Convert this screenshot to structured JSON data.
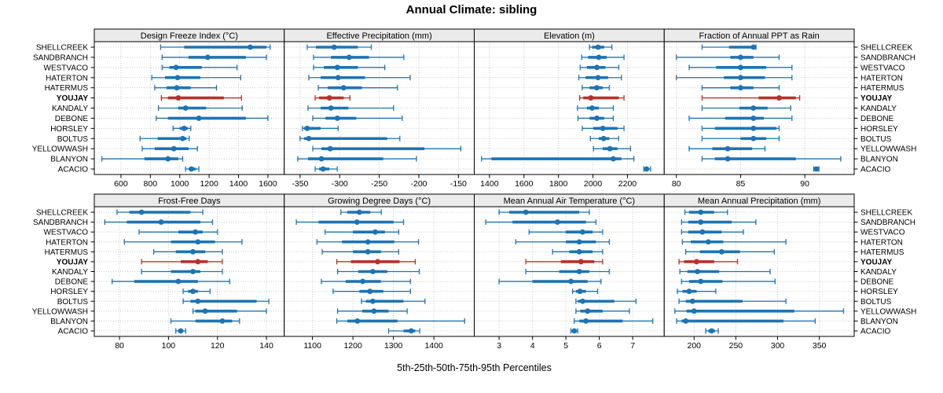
{
  "title": "Annual Climate: sibling",
  "caption": "5th-25th-50th-75th-95th Percentiles",
  "sites": [
    "SHELLCREEK",
    "SANDBRANCH",
    "WESTVACO",
    "HATERTON",
    "HATERMUS",
    "YOUJAY",
    "KANDALY",
    "DEBONE",
    "HORSLEY",
    "BOLTUS",
    "YELLOWWASH",
    "BLANYON",
    "ACACIO"
  ],
  "highlight_site": "YOUJAY",
  "colors": {
    "series": "#1c74b4",
    "highlight": "#b5322a",
    "strip_bg": "#ebebeb",
    "grid": "#c9c9c9",
    "border": "#000000"
  },
  "chart_data": [
    {
      "type": "percentile-dotplot",
      "title": "Design Freeze Index (°C)",
      "ticks": [
        600,
        800,
        1000,
        1200,
        1400,
        1600
      ],
      "xlim": [
        440,
        1690
      ],
      "percentiles": [
        5,
        25,
        50,
        75,
        95
      ],
      "values": [
        [
          870,
          1030,
          1480,
          1590,
          1615
        ],
        [
          880,
          1060,
          1190,
          1450,
          1590
        ],
        [
          880,
          930,
          975,
          1150,
          1390
        ],
        [
          810,
          900,
          985,
          1140,
          1415
        ],
        [
          830,
          910,
          980,
          1075,
          1250
        ],
        [
          875,
          920,
          990,
          1300,
          1420
        ],
        [
          855,
          990,
          1040,
          1180,
          1425
        ],
        [
          840,
          920,
          1130,
          1450,
          1600
        ],
        [
          955,
          1000,
          1030,
          1055,
          1075
        ],
        [
          730,
          850,
          1020,
          1045,
          1065
        ],
        [
          745,
          830,
          960,
          1060,
          1120
        ],
        [
          470,
          760,
          920,
          990,
          1020
        ],
        [
          1040,
          1060,
          1080,
          1110,
          1130
        ]
      ]
    },
    {
      "type": "percentile-dotplot",
      "title": "Effective Precipitation (mm)",
      "ticks": [
        -350,
        -300,
        -250,
        -200,
        -150
      ],
      "xlim": [
        -366,
        -134
      ],
      "percentiles": [
        5,
        25,
        50,
        75,
        95
      ],
      "values": [
        [
          -341,
          -330,
          -307,
          -277,
          -260
        ],
        [
          -333,
          -311,
          -288,
          -263,
          -219
        ],
        [
          -333,
          -320,
          -303,
          -277,
          -243
        ],
        [
          -339,
          -324,
          -302,
          -268,
          -211
        ],
        [
          -327,
          -315,
          -295,
          -272,
          -227
        ],
        [
          -331,
          -326,
          -313,
          -295,
          -287
        ],
        [
          -340,
          -324,
          -311,
          -289,
          -232
        ],
        [
          -334,
          -318,
          -303,
          -279,
          -221
        ],
        [
          -347,
          -345,
          -341,
          -324,
          -302
        ],
        [
          -350,
          -345,
          -339,
          -240,
          -224
        ],
        [
          -334,
          -323,
          -312,
          -193,
          -147
        ],
        [
          -353,
          -340,
          -323,
          -245,
          -203
        ],
        [
          -331,
          -326,
          -321,
          -313,
          -303
        ]
      ]
    },
    {
      "type": "percentile-dotplot",
      "title": "Elevation (m)",
      "ticks": [
        1400,
        1600,
        1800,
        2000,
        2200
      ],
      "xlim": [
        1330,
        2395
      ],
      "percentiles": [
        5,
        25,
        50,
        75,
        95
      ],
      "values": [
        [
          1980,
          1995,
          2030,
          2065,
          2110
        ],
        [
          1935,
          1972,
          2034,
          2080,
          2180
        ],
        [
          1926,
          1965,
          2023,
          2072,
          2150
        ],
        [
          1918,
          1957,
          2029,
          2088,
          2165
        ],
        [
          1938,
          1980,
          2022,
          2057,
          2095
        ],
        [
          1923,
          1944,
          1988,
          2150,
          2180
        ],
        [
          1910,
          1965,
          1995,
          2034,
          2118
        ],
        [
          1913,
          1980,
          2023,
          2065,
          2118
        ],
        [
          1938,
          2003,
          2057,
          2142,
          2180
        ],
        [
          1985,
          2034,
          2062,
          2095,
          2149
        ],
        [
          2003,
          2057,
          2098,
          2142,
          2218
        ],
        [
          1354,
          1411,
          2118,
          2165,
          2237
        ],
        [
          2295,
          2303,
          2311,
          2322,
          2334
        ]
      ]
    },
    {
      "type": "percentile-dotplot",
      "title": "Fraction of Annual PPT as Rain",
      "ticks": [
        80,
        85,
        90
      ],
      "xlim": [
        79.3,
        93.6
      ],
      "percentiles": [
        5,
        25,
        50,
        75,
        95
      ],
      "values": [
        [
          82,
          84.1,
          86,
          86.1,
          86.2
        ],
        [
          80,
          84.2,
          85,
          86,
          88
        ],
        [
          81,
          83.1,
          85,
          87,
          89
        ],
        [
          80,
          83.7,
          85,
          86.9,
          89
        ],
        [
          82,
          84.2,
          85,
          86,
          88
        ],
        [
          82,
          86.4,
          88,
          89.3,
          89.6
        ],
        [
          82,
          84.9,
          86,
          87.1,
          88.9
        ],
        [
          81,
          83.8,
          86,
          86.8,
          89
        ],
        [
          82,
          83,
          86,
          87.8,
          88
        ],
        [
          82,
          85,
          86,
          87,
          88
        ],
        [
          81,
          82.8,
          84,
          85.9,
          86.9
        ],
        [
          82,
          83,
          84,
          89.3,
          92.8
        ],
        [
          90.7,
          90.8,
          90.9,
          91.0,
          91.1
        ]
      ]
    },
    {
      "type": "percentile-dotplot",
      "title": "Frost-Free Days",
      "ticks": [
        80,
        100,
        120,
        140
      ],
      "xlim": [
        71,
        146
      ],
      "percentiles": [
        5,
        25,
        50,
        75,
        95
      ],
      "values": [
        [
          79,
          84,
          89,
          109,
          114
        ],
        [
          74,
          83,
          97,
          113,
          118
        ],
        [
          88,
          104,
          111,
          114,
          120
        ],
        [
          82,
          101,
          112,
          119,
          130
        ],
        [
          94,
          103,
          110,
          115,
          122
        ],
        [
          89,
          105,
          112,
          116,
          122
        ],
        [
          89,
          101,
          110,
          113,
          122
        ],
        [
          77,
          86,
          104,
          112,
          125
        ],
        [
          106,
          108,
          110,
          112,
          117
        ],
        [
          106,
          109,
          112,
          136,
          141
        ],
        [
          110,
          111,
          115,
          128,
          140
        ],
        [
          101,
          111,
          122,
          126,
          129
        ],
        [
          103,
          104,
          105,
          106,
          107
        ]
      ]
    },
    {
      "type": "percentile-dotplot",
      "title": "Growing Degree Days (°C)",
      "ticks": [
        1100,
        1200,
        1300,
        1400
      ],
      "xlim": [
        1038,
        1492
      ],
      "percentiles": [
        5,
        25,
        50,
        75,
        95
      ],
      "values": [
        [
          1170,
          1186,
          1216,
          1243,
          1270
        ],
        [
          1060,
          1115,
          1210,
          1300,
          1325
        ],
        [
          1131,
          1200,
          1255,
          1279,
          1313
        ],
        [
          1111,
          1173,
          1237,
          1302,
          1362
        ],
        [
          1124,
          1200,
          1237,
          1269,
          1313
        ],
        [
          1160,
          1195,
          1261,
          1315,
          1354
        ],
        [
          1162,
          1213,
          1249,
          1285,
          1364
        ],
        [
          1122,
          1182,
          1224,
          1269,
          1342
        ],
        [
          1151,
          1216,
          1242,
          1275,
          1342
        ],
        [
          1221,
          1232,
          1249,
          1325,
          1378
        ],
        [
          1162,
          1223,
          1252,
          1288,
          1334
        ],
        [
          1160,
          1186,
          1211,
          1310,
          1476
        ],
        [
          1288,
          1325,
          1344,
          1354,
          1365
        ]
      ]
    },
    {
      "type": "percentile-dotplot",
      "title": "Mean Annual Air Temperature (°C)",
      "ticks": [
        3,
        4,
        5,
        6,
        7
      ],
      "xlim": [
        2.35,
        7.85
      ],
      "percentiles": [
        5,
        25,
        50,
        75,
        95
      ],
      "values": [
        [
          3.0,
          3.3,
          3.8,
          5.4,
          5.7
        ],
        [
          2.6,
          3.4,
          4.75,
          5.6,
          5.9
        ],
        [
          3.9,
          5.0,
          5.5,
          5.8,
          6.1
        ],
        [
          3.5,
          5.0,
          5.4,
          5.9,
          6.3
        ],
        [
          4.6,
          5.1,
          5.4,
          5.8,
          6.1
        ],
        [
          3.8,
          4.85,
          5.45,
          5.85,
          6.1
        ],
        [
          3.8,
          4.8,
          5.4,
          5.7,
          6.3
        ],
        [
          3.0,
          4.0,
          5.15,
          5.65,
          6.05
        ],
        [
          5.2,
          5.3,
          5.42,
          5.6,
          5.95
        ],
        [
          5.3,
          5.36,
          5.5,
          6.45,
          7.1
        ],
        [
          5.3,
          5.43,
          5.65,
          6.1,
          6.9
        ],
        [
          5.25,
          5.4,
          5.6,
          6.7,
          7.6
        ],
        [
          5.15,
          5.2,
          5.25,
          5.3,
          5.35
        ]
      ]
    },
    {
      "type": "percentile-dotplot",
      "title": "Mean Annual Precipitation (mm)",
      "ticks": [
        200,
        250,
        300,
        350
      ],
      "xlim": [
        168,
        388
      ],
      "percentiles": [
        5,
        25,
        50,
        75,
        95
      ],
      "values": [
        [
          189,
          194,
          208,
          224,
          240
        ],
        [
          185,
          193,
          208,
          245,
          274
        ],
        [
          185,
          193,
          210,
          233,
          259
        ],
        [
          186,
          196,
          217,
          235,
          310
        ],
        [
          190,
          207,
          233,
          255,
          296
        ],
        [
          182,
          188,
          203,
          224,
          252
        ],
        [
          183,
          192,
          204,
          230,
          291
        ],
        [
          185,
          194,
          208,
          234,
          297
        ],
        [
          180,
          186,
          194,
          203,
          226
        ],
        [
          182,
          190,
          198,
          258,
          310
        ],
        [
          177,
          191,
          200,
          320,
          379
        ],
        [
          179,
          185,
          190,
          307,
          345
        ],
        [
          214,
          217,
          221,
          225,
          229
        ]
      ]
    }
  ]
}
